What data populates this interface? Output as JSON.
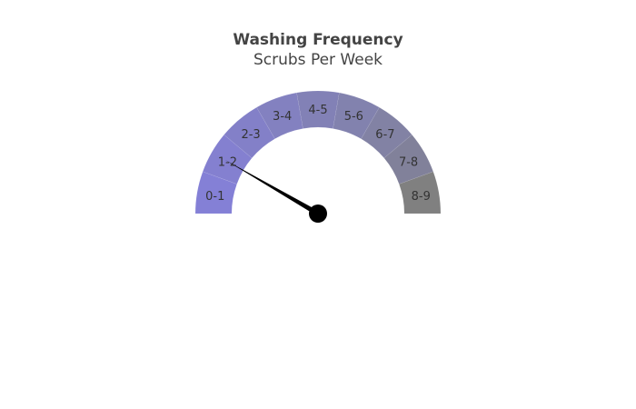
{
  "chart_data": {
    "type": "gauge",
    "title": "Washing Frequency",
    "subtitle": "Scrubs Per Week",
    "min": 0,
    "max": 9,
    "value": 1.5,
    "segments": [
      {
        "label": "0-1",
        "from": 0,
        "to": 1,
        "color": "#8480d6"
      },
      {
        "label": "1-2",
        "from": 1,
        "to": 2,
        "color": "#8480d0"
      },
      {
        "label": "2-3",
        "from": 2,
        "to": 3,
        "color": "#8380c8"
      },
      {
        "label": "3-4",
        "from": 3,
        "to": 4,
        "color": "#8381c0"
      },
      {
        "label": "4-5",
        "from": 4,
        "to": 5,
        "color": "#8281b6"
      },
      {
        "label": "5-6",
        "from": 5,
        "to": 6,
        "color": "#8282ae"
      },
      {
        "label": "6-7",
        "from": 6,
        "to": 7,
        "color": "#8282a4"
      },
      {
        "label": "7-8",
        "from": 7,
        "to": 8,
        "color": "#81819a"
      },
      {
        "label": "8-9",
        "from": 8,
        "to": 9,
        "color": "#808080"
      }
    ],
    "needle_color": "#000000"
  }
}
